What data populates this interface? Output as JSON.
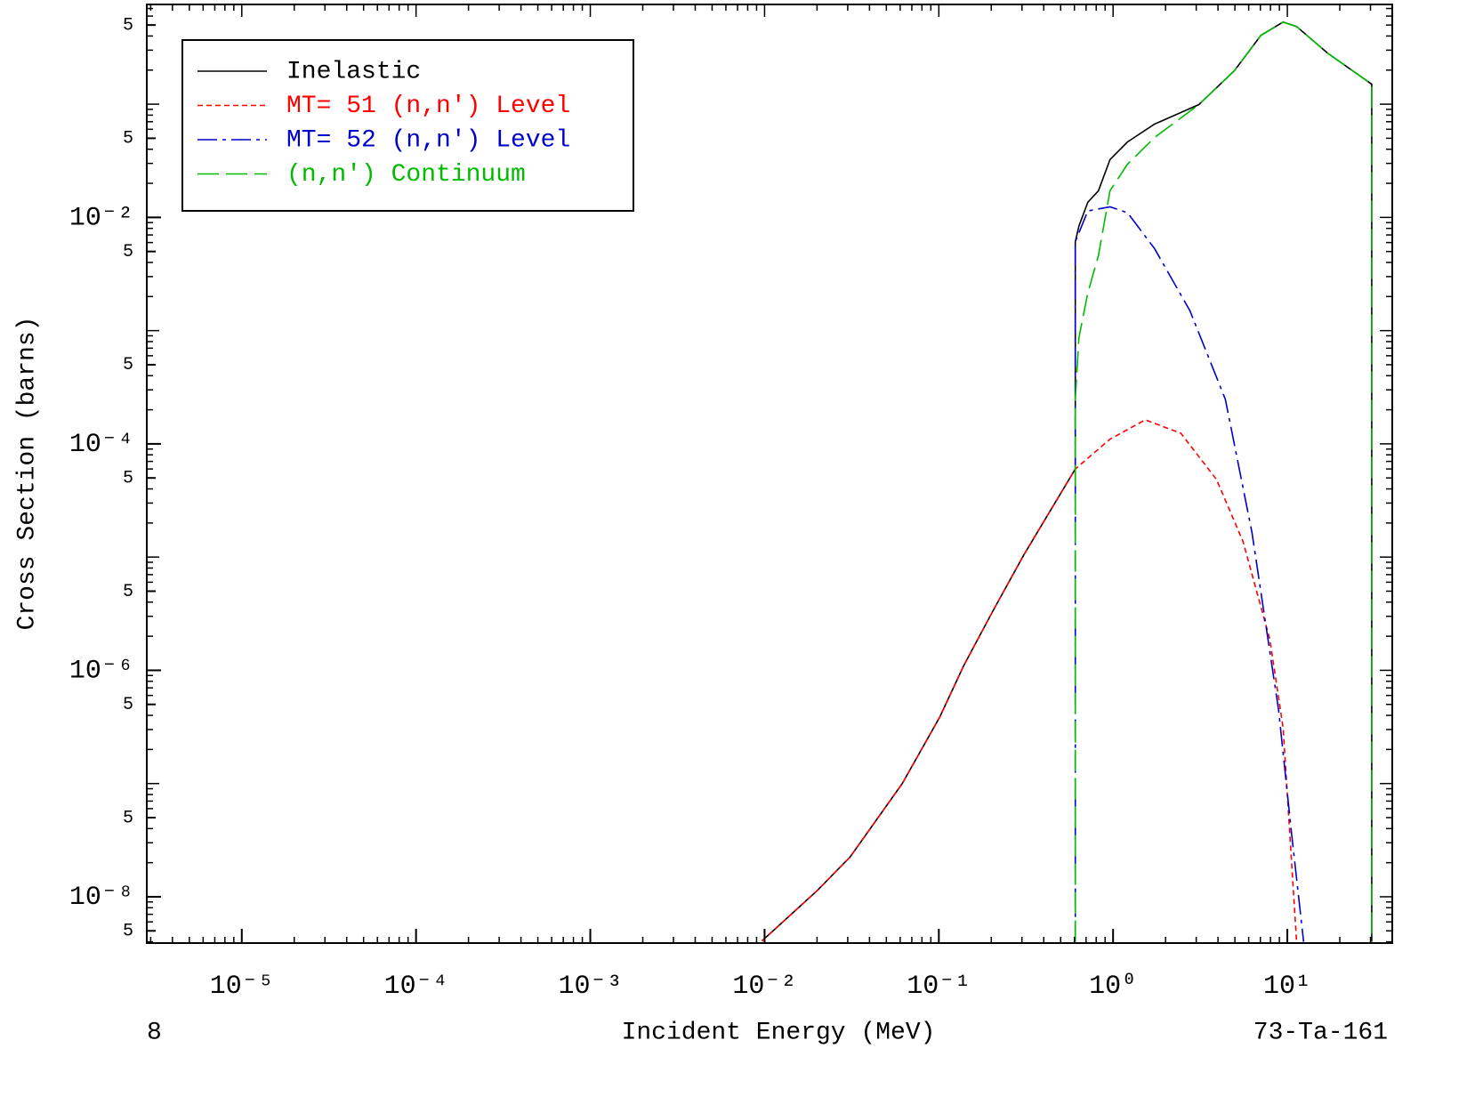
{
  "chart_data": {
    "type": "line",
    "xlabel": "Incident Energy (MeV)",
    "ylabel": "Cross Section (barns)",
    "left_note": "8",
    "right_note": "73-Ta-161",
    "xscale": "log",
    "yscale": "log",
    "legend": "upper left",
    "xlim": [
      2.85e-06,
      40
    ],
    "ylim": [
      3.9e-09,
      0.76
    ],
    "xticks": [
      {
        "value": 1e-05,
        "label": "10⁻⁵"
      },
      {
        "value": 0.0001,
        "label": "10⁻⁴"
      },
      {
        "value": 0.001,
        "label": "10⁻³"
      },
      {
        "value": 0.01,
        "label": "10⁻²"
      },
      {
        "value": 0.1,
        "label": "10⁻¹"
      },
      {
        "value": 1,
        "label": "10⁰"
      },
      {
        "value": 10,
        "label": "10¹"
      }
    ],
    "yticks": [
      {
        "value": 0.5,
        "label": "5"
      },
      {
        "value": 0.05,
        "label": "5"
      },
      {
        "value": 0.01,
        "label": "10⁻²"
      },
      {
        "value": 0.005,
        "label": "5"
      },
      {
        "value": 0.0005,
        "label": "5"
      },
      {
        "value": 0.0001,
        "label": "10⁻⁴"
      },
      {
        "value": 5e-05,
        "label": "5"
      },
      {
        "value": 5e-06,
        "label": "5"
      },
      {
        "value": 1e-06,
        "label": "10⁻⁶"
      },
      {
        "value": 5e-07,
        "label": "5"
      },
      {
        "value": 5e-08,
        "label": "5"
      },
      {
        "value": 1e-08,
        "label": "10⁻⁸"
      },
      {
        "value": 5e-09,
        "label": "5"
      }
    ],
    "series": [
      {
        "name": "Inelastic",
        "color": "#000000",
        "dash": "solid",
        "x": [
          0.00966,
          0.02,
          0.031,
          0.0617,
          0.101,
          0.139,
          0.202,
          0.308,
          0.607,
          0.607,
          0.637,
          0.716,
          0.824,
          0.96,
          1.21,
          1.73,
          3.1,
          4.96,
          7.05,
          9.46,
          11.3,
          17.0,
          30.5,
          30.5
        ],
        "values": [
          4.07e-09,
          1.13e-08,
          2.25e-08,
          1e-07,
          3.84e-07,
          1.1e-06,
          3.24e-06,
          1.05e-05,
          6e-05,
          0.0061,
          0.0084,
          0.0136,
          0.0172,
          0.0324,
          0.0464,
          0.0667,
          0.099,
          0.197,
          0.405,
          0.532,
          0.485,
          0.283,
          0.15,
          4e-09
        ]
      },
      {
        "name": "MT= 51 (n,n') Level",
        "color": "#ff0000",
        "dash": "short",
        "x": [
          0.00966,
          0.02,
          0.031,
          0.0617,
          0.101,
          0.139,
          0.202,
          0.308,
          0.607,
          0.96,
          1.53,
          2.45,
          3.92,
          5.57,
          7.93,
          9.46,
          11.3
        ],
        "values": [
          4.07e-09,
          1.13e-08,
          2.25e-08,
          1e-07,
          3.84e-07,
          1.1e-06,
          3.24e-06,
          1.05e-05,
          6e-05,
          0.00011,
          0.000163,
          0.000124,
          4.85e-05,
          1.37e-05,
          1.88e-06,
          3.09e-07,
          4e-09
        ]
      },
      {
        "name": "MT= 52 (n,n') Level",
        "color": "#0000cc",
        "dash": "dashdot",
        "x": [
          0.607,
          0.607,
          0.716,
          0.96,
          1.21,
          1.73,
          2.76,
          4.41,
          6.27,
          8.91,
          10.6,
          12.4
        ],
        "values": [
          4e-09,
          0.0061,
          0.0114,
          0.0124,
          0.011,
          0.0053,
          0.0015,
          0.000247,
          1.64e-05,
          4.44e-07,
          3.5e-08,
          4e-09
        ]
      },
      {
        "name": "(n,n') Continuum",
        "color": "#00bb00",
        "dash": "long",
        "x": [
          0.607,
          0.607,
          0.637,
          0.716,
          0.824,
          0.96,
          1.21,
          1.73,
          3.1,
          4.96,
          7.05,
          9.46,
          11.3,
          17.0,
          30.5,
          30.5
        ],
        "values": [
          4e-09,
          0.00025,
          0.00087,
          0.00215,
          0.0046,
          0.0172,
          0.0295,
          0.0508,
          0.099,
          0.197,
          0.405,
          0.532,
          0.485,
          0.283,
          0.15,
          4e-09
        ]
      }
    ]
  }
}
